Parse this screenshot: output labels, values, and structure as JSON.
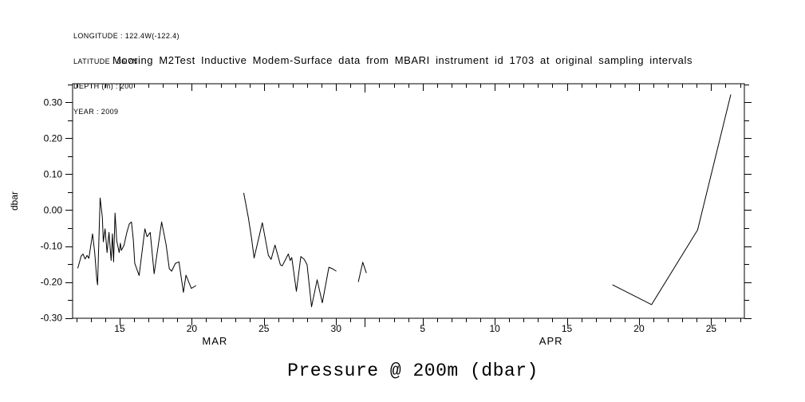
{
  "header": {
    "lines": [
      "LONGITUDE : 122.4W(-122.4)",
      "LATITUDE : 36.7N",
      "DEPTH (m) : 200",
      "YEAR : 2009"
    ]
  },
  "title": "Mooring M2Test Inductive Modem-Surface data from MBARI instrument id 1703 at original sampling intervals",
  "caption": "Pressure @ 200m (dbar)",
  "chart_data": {
    "type": "line",
    "title": "Mooring M2Test Inductive Modem-Surface data from MBARI instrument id 1703 at original sampling intervals",
    "ylabel": "dbar",
    "background": "#ffffff",
    "line_color": "#000000",
    "grid": false,
    "xlim": [
      11.74,
      58.3
    ],
    "ylim": [
      -0.301,
      0.352
    ],
    "x_encoding": "day of March 2009 (values > 31 continue into April)",
    "xticks_major": [
      {
        "day": 15,
        "label": "15"
      },
      {
        "day": 20,
        "label": "20"
      },
      {
        "day": 25,
        "label": "25"
      },
      {
        "day": 30,
        "label": "30"
      },
      {
        "day": 36,
        "label": "5"
      },
      {
        "day": 41,
        "label": "10"
      },
      {
        "day": 46,
        "label": "15"
      },
      {
        "day": 51,
        "label": "20"
      },
      {
        "day": 56,
        "label": "25"
      }
    ],
    "month_tick_days": [
      32
    ],
    "minor_x_step_days": 1,
    "months": [
      {
        "label": "MAR",
        "day": 21.6
      },
      {
        "label": "APR",
        "day": 44.9
      }
    ],
    "yticks": [
      {
        "v": 0.3,
        "label": "0.30"
      },
      {
        "v": 0.2,
        "label": "0.20"
      },
      {
        "v": 0.1,
        "label": "0.10"
      },
      {
        "v": 0.0,
        "label": "0.00"
      },
      {
        "v": -0.1,
        "label": "-0.10"
      },
      {
        "v": -0.2,
        "label": "-0.20"
      },
      {
        "v": -0.3,
        "label": "-0.30"
      }
    ],
    "minor_y_step": 0.05,
    "series": [
      {
        "name": "Pressure @ 200m",
        "units": "dbar",
        "segments": [
          [
            [
              12.1,
              -0.162
            ],
            [
              12.33,
              -0.128
            ],
            [
              12.46,
              -0.122
            ],
            [
              12.61,
              -0.136
            ],
            [
              12.74,
              -0.126
            ],
            [
              12.87,
              -0.134
            ],
            [
              13.12,
              -0.066
            ],
            [
              13.27,
              -0.118
            ],
            [
              13.41,
              -0.19
            ],
            [
              13.47,
              -0.208
            ],
            [
              13.65,
              0.034
            ],
            [
              13.8,
              -0.02
            ],
            [
              13.87,
              -0.088
            ],
            [
              13.99,
              -0.052
            ],
            [
              14.13,
              -0.118
            ],
            [
              14.26,
              -0.062
            ],
            [
              14.41,
              -0.14
            ],
            [
              14.5,
              -0.066
            ],
            [
              14.58,
              -0.144
            ],
            [
              14.68,
              -0.008
            ],
            [
              14.8,
              -0.085
            ],
            [
              14.97,
              -0.118
            ],
            [
              15.05,
              -0.092
            ],
            [
              15.12,
              -0.112
            ],
            [
              15.3,
              -0.098
            ],
            [
              15.5,
              -0.062
            ],
            [
              15.67,
              -0.038
            ],
            [
              15.82,
              -0.033
            ],
            [
              15.95,
              -0.082
            ],
            [
              16.05,
              -0.148
            ],
            [
              16.35,
              -0.182
            ],
            [
              16.75,
              -0.052
            ],
            [
              16.9,
              -0.074
            ],
            [
              17.12,
              -0.062
            ],
            [
              17.39,
              -0.177
            ],
            [
              17.91,
              -0.033
            ],
            [
              18.22,
              -0.096
            ],
            [
              18.44,
              -0.163
            ],
            [
              18.6,
              -0.17
            ],
            [
              18.87,
              -0.148
            ],
            [
              19.11,
              -0.144
            ],
            [
              19.42,
              -0.229
            ],
            [
              19.6,
              -0.181
            ],
            [
              19.97,
              -0.218
            ],
            [
              20.3,
              -0.21
            ]
          ],
          [
            [
              23.6,
              0.048
            ],
            [
              23.93,
              -0.022
            ],
            [
              24.15,
              -0.08
            ],
            [
              24.32,
              -0.133
            ],
            [
              24.89,
              -0.035
            ],
            [
              25.31,
              -0.126
            ],
            [
              25.5,
              -0.137
            ],
            [
              25.77,
              -0.097
            ],
            [
              26.14,
              -0.152
            ],
            [
              26.27,
              -0.155
            ],
            [
              26.69,
              -0.122
            ],
            [
              26.82,
              -0.14
            ],
            [
              26.93,
              -0.132
            ],
            [
              27.25,
              -0.226
            ],
            [
              27.56,
              -0.129
            ],
            [
              27.8,
              -0.137
            ],
            [
              27.99,
              -0.152
            ],
            [
              28.3,
              -0.269
            ],
            [
              28.69,
              -0.194
            ],
            [
              29.05,
              -0.258
            ],
            [
              29.5,
              -0.159
            ],
            [
              29.75,
              -0.163
            ],
            [
              30.02,
              -0.17
            ]
          ],
          [
            [
              31.54,
              -0.2
            ],
            [
              31.85,
              -0.145
            ],
            [
              32.1,
              -0.175
            ]
          ],
          [
            [
              49.16,
              -0.208
            ],
            [
              51.87,
              -0.263
            ],
            [
              55.06,
              -0.055
            ],
            [
              57.36,
              0.322
            ]
          ]
        ]
      }
    ]
  }
}
